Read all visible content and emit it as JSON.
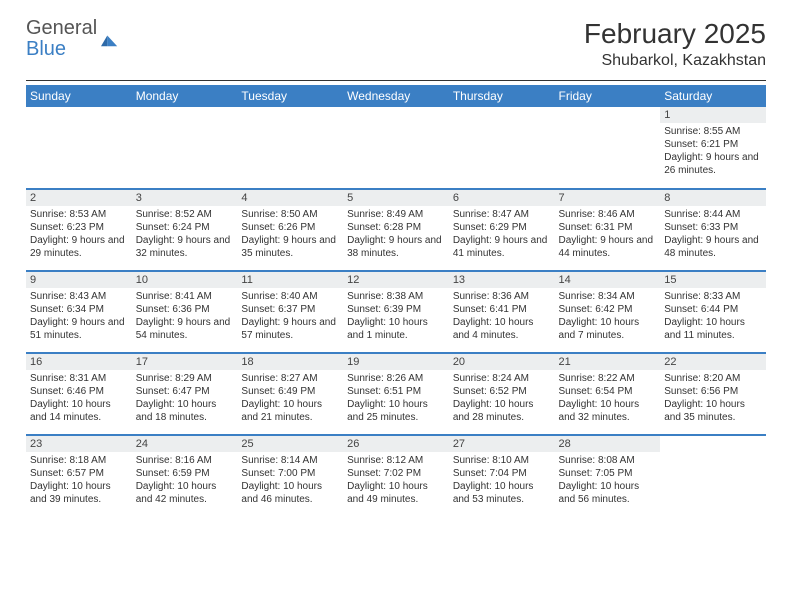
{
  "logo": {
    "text1": "General",
    "text2": "Blue"
  },
  "title": "February 2025",
  "location": "Shubarkol, Kazakhstan",
  "colors": {
    "accent": "#3b7fc4",
    "header_bg": "#eceeef",
    "text": "#333333"
  },
  "weekdays": [
    "Sunday",
    "Monday",
    "Tuesday",
    "Wednesday",
    "Thursday",
    "Friday",
    "Saturday"
  ],
  "weeks": [
    [
      {
        "n": "",
        "s": "",
        "t": "",
        "d": "",
        "e": true
      },
      {
        "n": "",
        "s": "",
        "t": "",
        "d": "",
        "e": true
      },
      {
        "n": "",
        "s": "",
        "t": "",
        "d": "",
        "e": true
      },
      {
        "n": "",
        "s": "",
        "t": "",
        "d": "",
        "e": true
      },
      {
        "n": "",
        "s": "",
        "t": "",
        "d": "",
        "e": true
      },
      {
        "n": "",
        "s": "",
        "t": "",
        "d": "",
        "e": true
      },
      {
        "n": "1",
        "s": "Sunrise: 8:55 AM",
        "t": "Sunset: 6:21 PM",
        "d": "Daylight: 9 hours and 26 minutes."
      }
    ],
    [
      {
        "n": "2",
        "s": "Sunrise: 8:53 AM",
        "t": "Sunset: 6:23 PM",
        "d": "Daylight: 9 hours and 29 minutes."
      },
      {
        "n": "3",
        "s": "Sunrise: 8:52 AM",
        "t": "Sunset: 6:24 PM",
        "d": "Daylight: 9 hours and 32 minutes."
      },
      {
        "n": "4",
        "s": "Sunrise: 8:50 AM",
        "t": "Sunset: 6:26 PM",
        "d": "Daylight: 9 hours and 35 minutes."
      },
      {
        "n": "5",
        "s": "Sunrise: 8:49 AM",
        "t": "Sunset: 6:28 PM",
        "d": "Daylight: 9 hours and 38 minutes."
      },
      {
        "n": "6",
        "s": "Sunrise: 8:47 AM",
        "t": "Sunset: 6:29 PM",
        "d": "Daylight: 9 hours and 41 minutes."
      },
      {
        "n": "7",
        "s": "Sunrise: 8:46 AM",
        "t": "Sunset: 6:31 PM",
        "d": "Daylight: 9 hours and 44 minutes."
      },
      {
        "n": "8",
        "s": "Sunrise: 8:44 AM",
        "t": "Sunset: 6:33 PM",
        "d": "Daylight: 9 hours and 48 minutes."
      }
    ],
    [
      {
        "n": "9",
        "s": "Sunrise: 8:43 AM",
        "t": "Sunset: 6:34 PM",
        "d": "Daylight: 9 hours and 51 minutes."
      },
      {
        "n": "10",
        "s": "Sunrise: 8:41 AM",
        "t": "Sunset: 6:36 PM",
        "d": "Daylight: 9 hours and 54 minutes."
      },
      {
        "n": "11",
        "s": "Sunrise: 8:40 AM",
        "t": "Sunset: 6:37 PM",
        "d": "Daylight: 9 hours and 57 minutes."
      },
      {
        "n": "12",
        "s": "Sunrise: 8:38 AM",
        "t": "Sunset: 6:39 PM",
        "d": "Daylight: 10 hours and 1 minute."
      },
      {
        "n": "13",
        "s": "Sunrise: 8:36 AM",
        "t": "Sunset: 6:41 PM",
        "d": "Daylight: 10 hours and 4 minutes."
      },
      {
        "n": "14",
        "s": "Sunrise: 8:34 AM",
        "t": "Sunset: 6:42 PM",
        "d": "Daylight: 10 hours and 7 minutes."
      },
      {
        "n": "15",
        "s": "Sunrise: 8:33 AM",
        "t": "Sunset: 6:44 PM",
        "d": "Daylight: 10 hours and 11 minutes."
      }
    ],
    [
      {
        "n": "16",
        "s": "Sunrise: 8:31 AM",
        "t": "Sunset: 6:46 PM",
        "d": "Daylight: 10 hours and 14 minutes."
      },
      {
        "n": "17",
        "s": "Sunrise: 8:29 AM",
        "t": "Sunset: 6:47 PM",
        "d": "Daylight: 10 hours and 18 minutes."
      },
      {
        "n": "18",
        "s": "Sunrise: 8:27 AM",
        "t": "Sunset: 6:49 PM",
        "d": "Daylight: 10 hours and 21 minutes."
      },
      {
        "n": "19",
        "s": "Sunrise: 8:26 AM",
        "t": "Sunset: 6:51 PM",
        "d": "Daylight: 10 hours and 25 minutes."
      },
      {
        "n": "20",
        "s": "Sunrise: 8:24 AM",
        "t": "Sunset: 6:52 PM",
        "d": "Daylight: 10 hours and 28 minutes."
      },
      {
        "n": "21",
        "s": "Sunrise: 8:22 AM",
        "t": "Sunset: 6:54 PM",
        "d": "Daylight: 10 hours and 32 minutes."
      },
      {
        "n": "22",
        "s": "Sunrise: 8:20 AM",
        "t": "Sunset: 6:56 PM",
        "d": "Daylight: 10 hours and 35 minutes."
      }
    ],
    [
      {
        "n": "23",
        "s": "Sunrise: 8:18 AM",
        "t": "Sunset: 6:57 PM",
        "d": "Daylight: 10 hours and 39 minutes."
      },
      {
        "n": "24",
        "s": "Sunrise: 8:16 AM",
        "t": "Sunset: 6:59 PM",
        "d": "Daylight: 10 hours and 42 minutes."
      },
      {
        "n": "25",
        "s": "Sunrise: 8:14 AM",
        "t": "Sunset: 7:00 PM",
        "d": "Daylight: 10 hours and 46 minutes."
      },
      {
        "n": "26",
        "s": "Sunrise: 8:12 AM",
        "t": "Sunset: 7:02 PM",
        "d": "Daylight: 10 hours and 49 minutes."
      },
      {
        "n": "27",
        "s": "Sunrise: 8:10 AM",
        "t": "Sunset: 7:04 PM",
        "d": "Daylight: 10 hours and 53 minutes."
      },
      {
        "n": "28",
        "s": "Sunrise: 8:08 AM",
        "t": "Sunset: 7:05 PM",
        "d": "Daylight: 10 hours and 56 minutes."
      },
      {
        "n": "",
        "s": "",
        "t": "",
        "d": "",
        "e": true
      }
    ]
  ]
}
